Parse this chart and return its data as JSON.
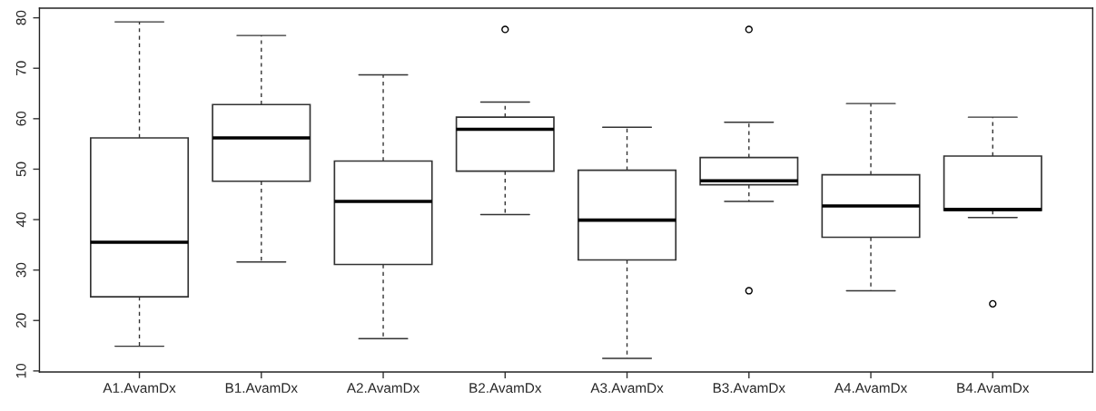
{
  "chart_data": {
    "type": "box",
    "categories": [
      "A1.AvamDx",
      "B1.AvamDx",
      "A2.AvamDx",
      "B2.AvamDx",
      "A3.AvamDx",
      "B3.AvamDx",
      "A4.AvamDx",
      "B4.AvamDx"
    ],
    "boxes": [
      {
        "low": 14.9,
        "q1": 24.7,
        "median": 35.5,
        "q3": 56.2,
        "high": 79.2
      },
      {
        "low": 31.6,
        "q1": 47.6,
        "median": 56.2,
        "q3": 62.8,
        "high": 76.5
      },
      {
        "low": 16.4,
        "q1": 31.1,
        "median": 43.6,
        "q3": 51.6,
        "high": 68.7
      },
      {
        "low": 41.0,
        "q1": 49.6,
        "median": 57.9,
        "q3": 60.3,
        "high": 63.3,
        "outliers": [
          77.7
        ]
      },
      {
        "low": 12.5,
        "q1": 32.0,
        "median": 39.9,
        "q3": 49.8,
        "high": 58.3
      },
      {
        "low": 43.6,
        "q1": 46.9,
        "median": 47.7,
        "q3": 52.3,
        "high": 59.3,
        "outliers": [
          77.7,
          25.9
        ]
      },
      {
        "low": 25.9,
        "q1": 36.5,
        "median": 42.7,
        "q3": 48.9,
        "high": 63.0
      },
      {
        "low": 40.4,
        "q1": 41.8,
        "median": 42.0,
        "q3": 52.6,
        "high": 60.3,
        "outliers": [
          23.3
        ]
      }
    ],
    "ylim": [
      9.8,
      81.9
    ],
    "yticks": [
      10,
      20,
      30,
      40,
      50,
      60,
      70,
      80
    ]
  }
}
